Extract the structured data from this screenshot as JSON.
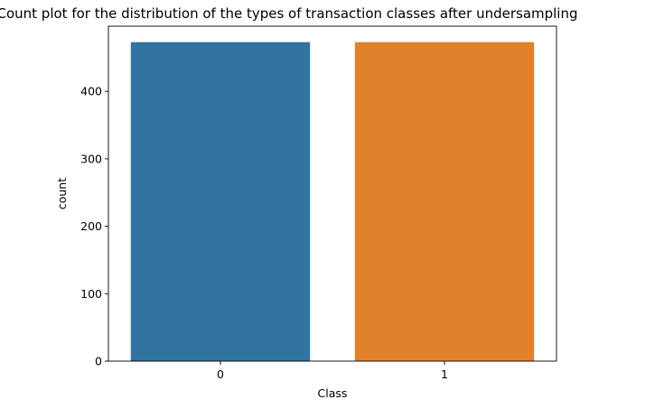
{
  "chart_data": {
    "type": "bar",
    "title": "Count plot for the distribution of the types of transaction classes after undersampling",
    "xlabel": "Class",
    "ylabel": "count",
    "categories": [
      "0",
      "1"
    ],
    "values": [
      473,
      473
    ],
    "ylim": [
      0,
      496.65
    ],
    "yticks": [
      0,
      100,
      200,
      300,
      400
    ],
    "grid": false,
    "legend": "none",
    "colors": [
      "#3274a1",
      "#e1812c"
    ]
  }
}
